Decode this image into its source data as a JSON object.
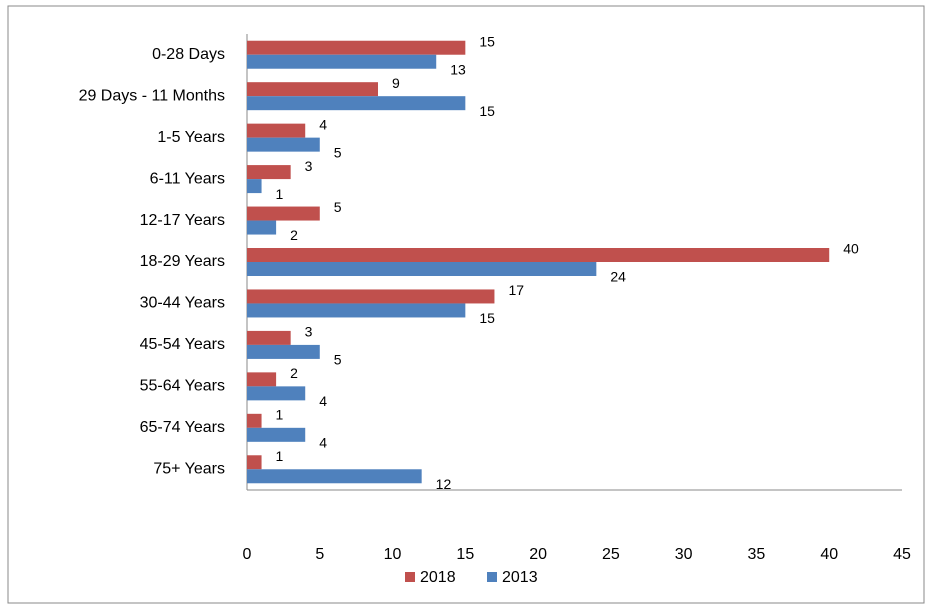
{
  "chart_data": {
    "type": "bar",
    "orientation": "horizontal",
    "categories": [
      "0-28 Days",
      "29 Days - 11 Months",
      "1-5 Years",
      "6-11 Years",
      "12-17 Years",
      "18-29 Years",
      "30-44 Years",
      "45-54 Years",
      "55-64 Years",
      "65-74 Years",
      "75+ Years"
    ],
    "series": [
      {
        "name": "2018",
        "color": "#c0504d",
        "values": [
          15,
          9,
          4,
          3,
          5,
          40,
          17,
          3,
          2,
          1,
          1
        ]
      },
      {
        "name": "2013",
        "color": "#4f81bd",
        "values": [
          13,
          15,
          5,
          1,
          2,
          24,
          15,
          5,
          4,
          4,
          12
        ]
      }
    ],
    "xlim": [
      0,
      45
    ],
    "xticks": [
      0,
      5,
      10,
      15,
      20,
      25,
      30,
      35,
      40,
      45
    ],
    "grid": false,
    "legend": "bottom"
  }
}
